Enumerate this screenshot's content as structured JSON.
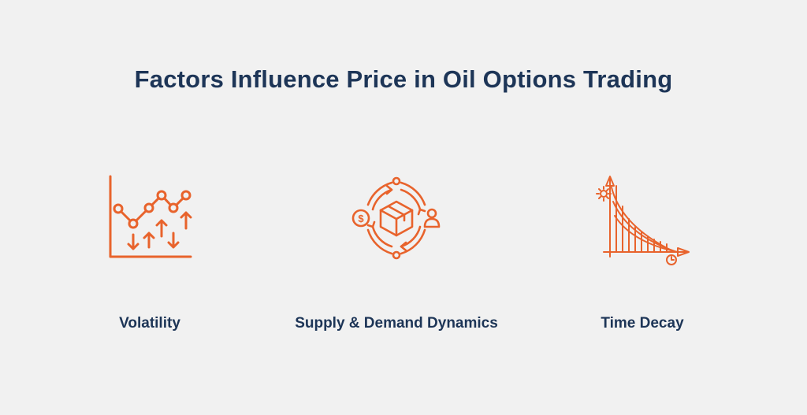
{
  "title": "Factors Influence Price in Oil Options Trading",
  "accent_color": "#e8632c",
  "text_color": "#1d3557",
  "factors": [
    {
      "label": "Volatility",
      "icon": "volatility-chart-icon"
    },
    {
      "label": "Supply & Demand Dynamics",
      "icon": "supply-demand-cycle-icon"
    },
    {
      "label": "Time Decay",
      "icon": "time-decay-curve-icon"
    }
  ]
}
